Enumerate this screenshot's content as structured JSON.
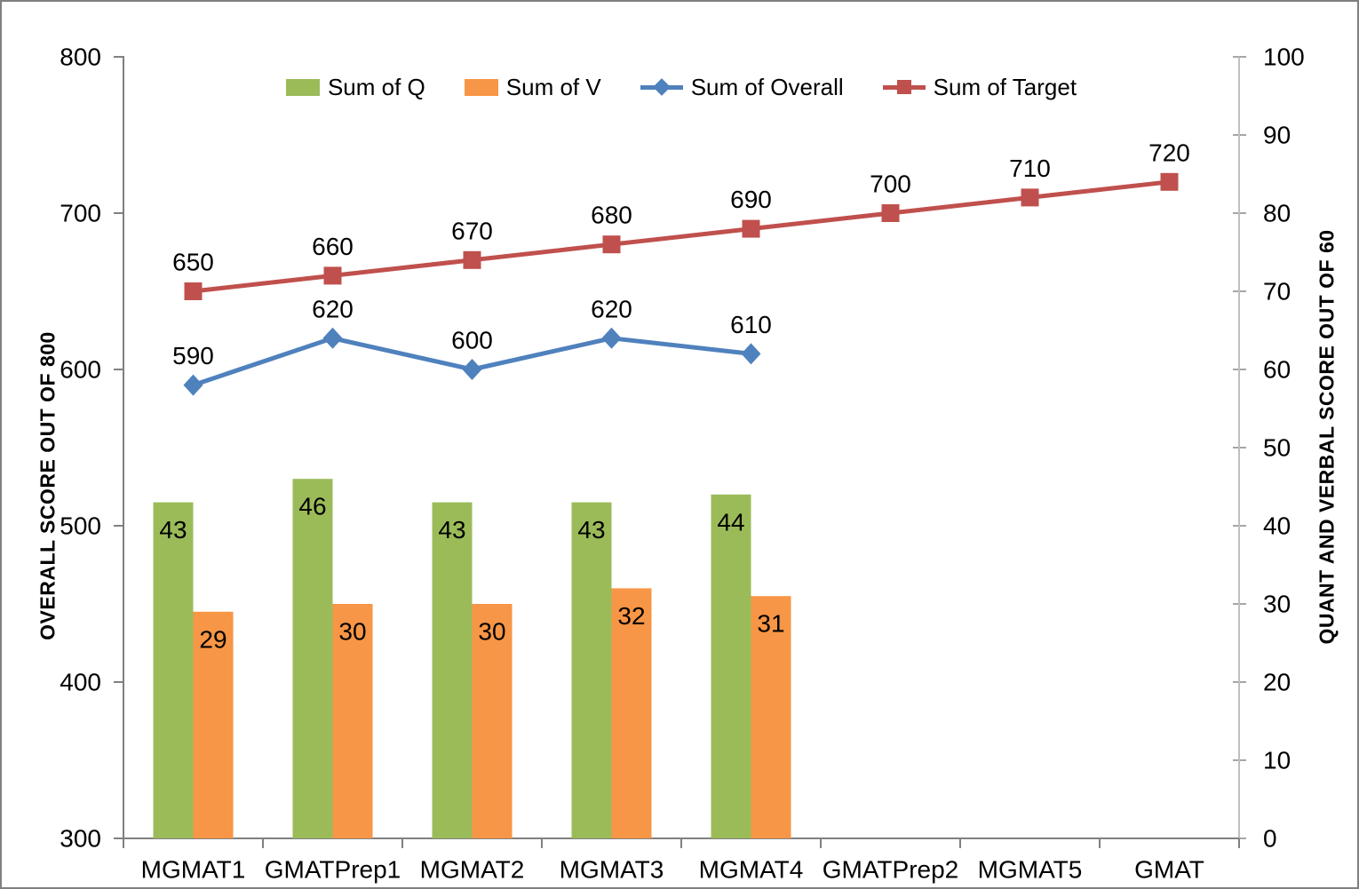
{
  "chart_data": {
    "type": "combo",
    "categories": [
      "MGMAT1",
      "GMATPrep1",
      "MGMAT2",
      "MGMAT3",
      "MGMAT4",
      "GMATPrep2",
      "MGMAT5",
      "GMAT"
    ],
    "series": [
      {
        "name": "Sum of Q",
        "type": "bar",
        "axis": "right",
        "color": "#9BBB59",
        "values": [
          43,
          46,
          43,
          43,
          44,
          null,
          null,
          null
        ]
      },
      {
        "name": "Sum of V",
        "type": "bar",
        "axis": "right",
        "color": "#F79646",
        "values": [
          29,
          30,
          30,
          32,
          31,
          null,
          null,
          null
        ]
      },
      {
        "name": "Sum of Overall",
        "type": "line",
        "marker": "diamond",
        "axis": "left",
        "color": "#4F81BD",
        "values": [
          590,
          620,
          600,
          620,
          610,
          null,
          null,
          null
        ]
      },
      {
        "name": "Sum of Target",
        "type": "line",
        "marker": "square",
        "axis": "left",
        "color": "#C0504D",
        "values": [
          650,
          660,
          670,
          680,
          690,
          700,
          710,
          720
        ]
      }
    ],
    "left_axis": {
      "title": "OVERALL SCORE OUT OF 800",
      "min": 300,
      "max": 800,
      "step": 100
    },
    "right_axis": {
      "title": "QUANT AND VERBAL SCORE OUT OF 60",
      "min": 0,
      "max": 100,
      "step": 10
    },
    "grid": false,
    "legend_position": "top",
    "data_labels": true
  },
  "style": {
    "axis_line_color": "#808080",
    "right_axis_line_color": "#BFBFBF",
    "right_tick_color": "#A6A6A6",
    "text_color": "#000000",
    "background": "#FFFFFF",
    "frame_border": "#7F7F7F"
  }
}
